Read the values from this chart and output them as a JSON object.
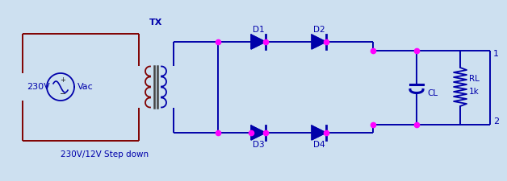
{
  "bg_color": "#cde0f0",
  "wire_color": "#800000",
  "blue_color": "#0000aa",
  "dot_color": "#ff00ff",
  "text_color": "#0000aa",
  "dark_text": "#000000",
  "label_230V": "230V",
  "label_Vac": "Vac",
  "label_TX": "TX",
  "label_stepdown": "230V/12V Step down",
  "label_D1": "D1",
  "label_D2": "D2",
  "label_D3": "D3",
  "label_D4": "D4",
  "label_CL": "CL",
  "label_RL": "RL",
  "label_1k": "1k",
  "label_1": "1",
  "label_2": "2",
  "figw": 6.28,
  "figh": 2.25,
  "dpi": 100
}
